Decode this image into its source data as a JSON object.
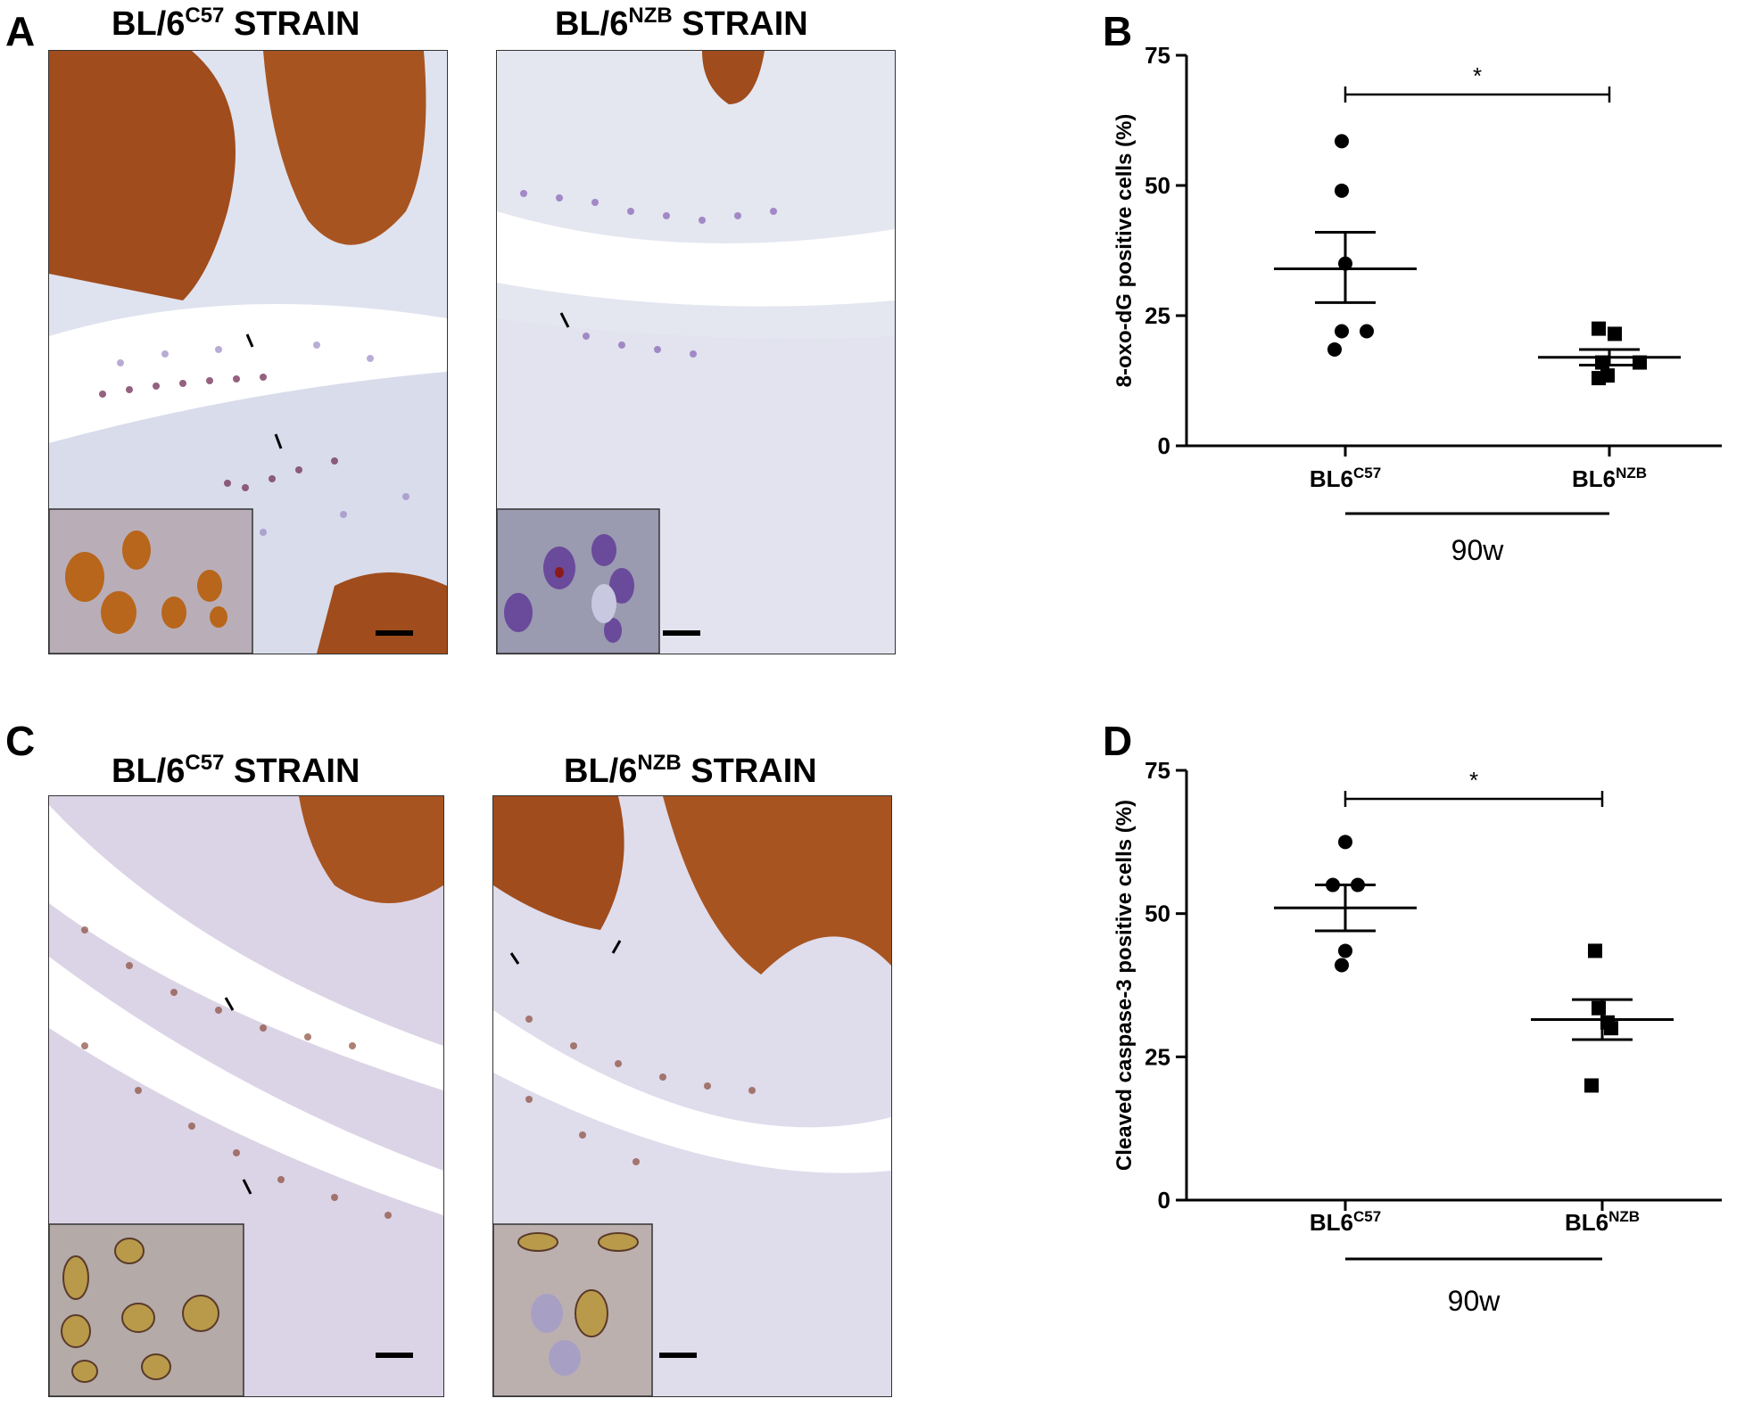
{
  "panels": {
    "A": {
      "letter": "A"
    },
    "B": {
      "letter": "B"
    },
    "C": {
      "letter": "C"
    },
    "D": {
      "letter": "D"
    }
  },
  "strain_titles": {
    "prefix": "BL/6",
    "c57_sup": "C57",
    "nzb_sup": "NZB",
    "suffix": " STRAIN"
  },
  "colors": {
    "brown_stain": "#9c4a1e",
    "purple_stain": "#8a6fb8",
    "background_tissue": "#e6e4f0"
  },
  "chart_data": [
    {
      "panel": "B",
      "type": "scatter",
      "ylabel": "8-oxo-dG positive cells (%)",
      "ylim": [
        0,
        75
      ],
      "yticks": [
        0,
        25,
        50,
        75
      ],
      "categories": [
        "BL6C57",
        "BL6NZB"
      ],
      "category_labels": [
        {
          "base": "BL6",
          "sup": "C57"
        },
        {
          "base": "BL6",
          "sup": "NZB"
        }
      ],
      "group_label": "90w",
      "significance": "*",
      "series": [
        {
          "name": "BL6C57",
          "marker": "circle",
          "values": [
            58.5,
            49,
            35,
            22,
            22,
            18.5
          ],
          "mean": 34,
          "sem_low": 27.5,
          "sem_high": 41
        },
        {
          "name": "BL6NZB",
          "marker": "square",
          "values": [
            22.5,
            21.5,
            16,
            16,
            13,
            13.5
          ],
          "mean": 17,
          "sem_low": 15.5,
          "sem_high": 18.5
        }
      ]
    },
    {
      "panel": "D",
      "type": "scatter",
      "ylabel": "Cleaved caspase-3 positive cells (%)",
      "ylim": [
        0,
        75
      ],
      "yticks": [
        0,
        25,
        50,
        75
      ],
      "categories": [
        "BL6C57",
        "BL6NZB"
      ],
      "category_labels": [
        {
          "base": "BL6",
          "sup": "C57"
        },
        {
          "base": "BL6",
          "sup": "NZB"
        }
      ],
      "group_label": "90w",
      "significance": "*",
      "series": [
        {
          "name": "BL6C57",
          "marker": "circle",
          "values": [
            62.5,
            55,
            55,
            43.5,
            41
          ],
          "mean": 51,
          "sem_low": 47,
          "sem_high": 55
        },
        {
          "name": "BL6NZB",
          "marker": "square",
          "values": [
            43.5,
            33.5,
            31,
            30,
            20
          ],
          "mean": 31.5,
          "sem_low": 28,
          "sem_high": 35
        }
      ]
    }
  ]
}
